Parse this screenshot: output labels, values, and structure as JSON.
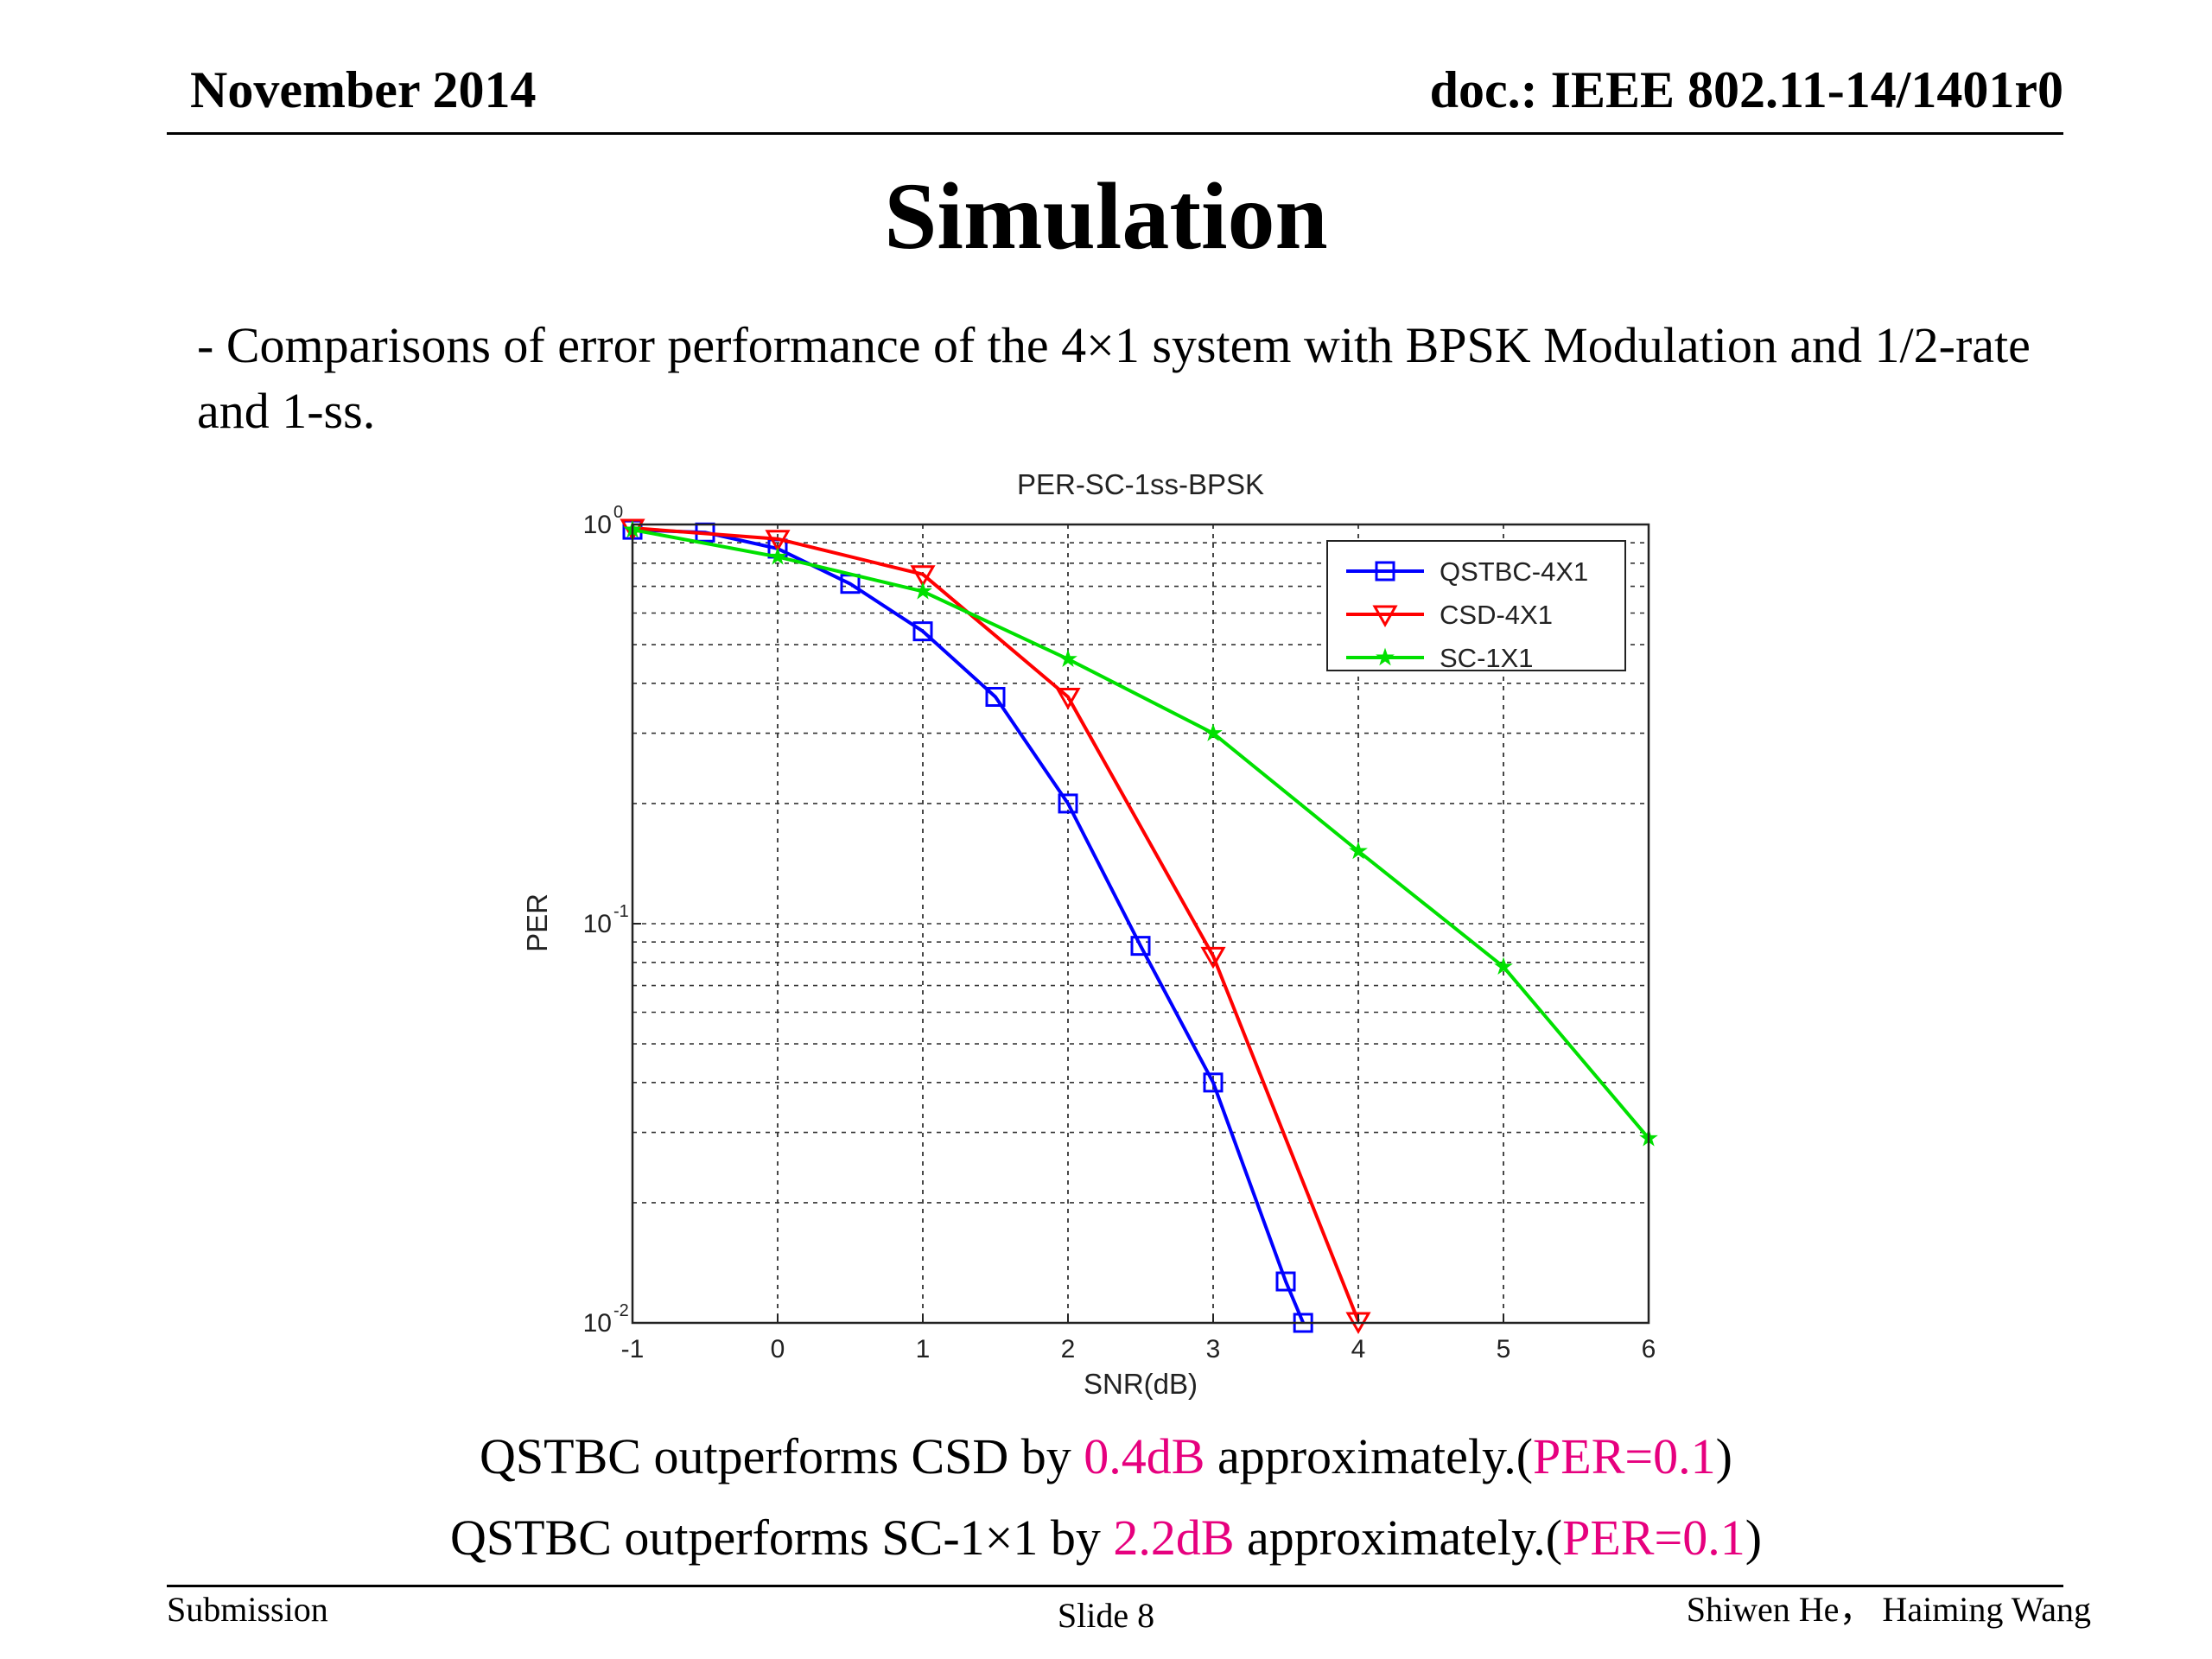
{
  "header": {
    "date": "November 2014",
    "doc": "doc.: IEEE 802.11-14/1401r0"
  },
  "slide": {
    "title": "Simulation",
    "bullet": "-  Comparisons of error performance of the 4×1 system with BPSK Modulation and 1/2-rate and 1-ss."
  },
  "conclusion": {
    "line1": {
      "prefix": "QSTBC outperforms CSD by ",
      "gain": "0.4dB",
      "middle": " approximately.(",
      "per": "PER=0.1",
      "suffix": ")"
    },
    "line2": {
      "prefix": "QSTBC outperforms SC-1×1 by ",
      "gain": "2.2dB",
      "middle": " approximately.(",
      "per": "PER=0.1",
      "suffix": ")"
    },
    "highlight_color": "#e6007e"
  },
  "footer": {
    "left": "Submission",
    "center": "Slide 8",
    "right": "Shiwen He， Haiming Wang"
  },
  "chart_data": {
    "type": "line",
    "title": "PER-SC-1ss-BPSK",
    "xlabel": "SNR(dB)",
    "ylabel": "PER",
    "xlim": [
      -1,
      6
    ],
    "ylim": [
      0.01,
      1
    ],
    "yscale": "log",
    "grid": true,
    "legend_position": "top-right",
    "x_ticks": [
      "-1",
      "0",
      "1",
      "2",
      "3",
      "4",
      "5",
      "6"
    ],
    "y_ticks": [
      {
        "base": "10",
        "exp": "0",
        "value": 1
      },
      {
        "base": "10",
        "exp": "-1",
        "value": 0.1
      },
      {
        "base": "10",
        "exp": "-2",
        "value": 0.01
      }
    ],
    "series": [
      {
        "name": "QSTBC-4X1",
        "color": "#0000ff",
        "marker": "square",
        "points": [
          [
            -1,
            0.97
          ],
          [
            -0.5,
            0.955
          ],
          [
            0,
            0.87
          ],
          [
            0.5,
            0.71
          ],
          [
            1,
            0.54
          ],
          [
            1.5,
            0.37
          ],
          [
            2,
            0.2
          ],
          [
            2.5,
            0.088
          ],
          [
            3,
            0.04
          ],
          [
            3.5,
            0.0127
          ],
          [
            3.62,
            0.01
          ]
        ]
      },
      {
        "name": "CSD-4X1",
        "color": "#ff0000",
        "marker": "triangle-down",
        "points": [
          [
            -1,
            0.98
          ],
          [
            0,
            0.92
          ],
          [
            1,
            0.75
          ],
          [
            2,
            0.37
          ],
          [
            3,
            0.083
          ],
          [
            4,
            0.0101
          ]
        ]
      },
      {
        "name": "SC-1X1",
        "color": "#00e000",
        "marker": "star",
        "points": [
          [
            -1,
            0.97
          ],
          [
            0,
            0.83
          ],
          [
            1,
            0.68
          ],
          [
            2,
            0.46
          ],
          [
            3,
            0.3
          ],
          [
            4,
            0.152
          ],
          [
            5,
            0.078
          ],
          [
            6,
            0.029
          ]
        ]
      }
    ]
  }
}
